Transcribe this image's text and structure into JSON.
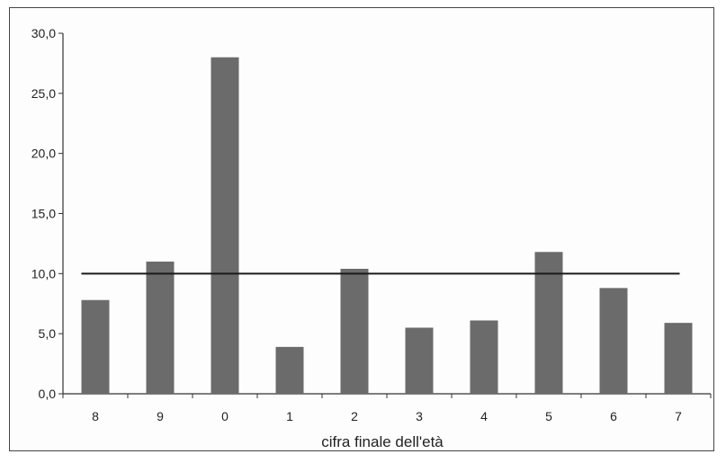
{
  "chart_data": {
    "type": "bar",
    "title": "",
    "xlabel": "cifra finale dell'età",
    "ylabel": "",
    "categories": [
      "8",
      "9",
      "0",
      "1",
      "2",
      "3",
      "4",
      "5",
      "6",
      "7"
    ],
    "values": [
      7.8,
      11.0,
      28.0,
      3.9,
      10.4,
      5.5,
      6.1,
      11.8,
      8.8,
      5.9
    ],
    "reference_line": 10.0,
    "ylim": [
      0,
      30
    ],
    "yticks": [
      "0,0",
      "5,0",
      "10,0",
      "15,0",
      "20,0",
      "25,0",
      "30,0"
    ],
    "grid": false,
    "legend": "none",
    "colors": {
      "bar": "#6b6b6b",
      "line": "#1a1a1a",
      "axis": "#333333"
    }
  }
}
